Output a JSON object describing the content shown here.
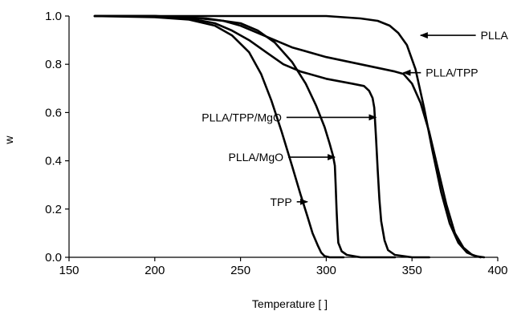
{
  "chart_data": {
    "type": "line",
    "title": "",
    "xlabel": "Temperature [   ]",
    "ylabel": "w",
    "xlim": [
      150,
      400
    ],
    "ylim": [
      0.0,
      1.0
    ],
    "xticks": [
      "150",
      "200",
      "250",
      "300",
      "350",
      "400"
    ],
    "yticks": [
      "0.0",
      "0.2",
      "0.4",
      "0.6",
      "0.8",
      "1.0"
    ],
    "grid": false,
    "legend": "none",
    "series": [
      {
        "name": "PLLA",
        "x": [
          165,
          280,
          300,
          320,
          330,
          337,
          342,
          347,
          352,
          357,
          362,
          367,
          372,
          377,
          382,
          387,
          392
        ],
        "y": [
          1.0,
          1.0,
          1.0,
          0.99,
          0.98,
          0.96,
          0.93,
          0.88,
          0.78,
          0.62,
          0.44,
          0.27,
          0.14,
          0.06,
          0.02,
          0.005,
          0.0
        ]
      },
      {
        "name": "PLLA/TPP",
        "x": [
          165,
          200,
          220,
          240,
          250,
          260,
          270,
          280,
          300,
          320,
          340,
          345,
          350,
          355,
          360,
          365,
          370,
          375,
          380,
          385,
          390
        ],
        "y": [
          1.0,
          1.0,
          0.995,
          0.98,
          0.96,
          0.93,
          0.9,
          0.87,
          0.83,
          0.8,
          0.77,
          0.76,
          0.72,
          0.64,
          0.52,
          0.37,
          0.22,
          0.1,
          0.04,
          0.01,
          0.0
        ]
      },
      {
        "name": "PLLA/TPP/MgO",
        "x": [
          165,
          200,
          220,
          235,
          245,
          255,
          265,
          275,
          285,
          300,
          315,
          322,
          325,
          327,
          328,
          329,
          330,
          331,
          332,
          334,
          336,
          340,
          350,
          360
        ],
        "y": [
          1.0,
          1.0,
          0.99,
          0.97,
          0.94,
          0.9,
          0.85,
          0.8,
          0.77,
          0.74,
          0.72,
          0.71,
          0.69,
          0.66,
          0.62,
          0.5,
          0.36,
          0.24,
          0.15,
          0.07,
          0.03,
          0.01,
          0.0,
          0.0
        ]
      },
      {
        "name": "PLLA/MgO",
        "x": [
          165,
          200,
          230,
          250,
          260,
          270,
          280,
          288,
          294,
          299,
          302,
          304,
          305,
          305.5,
          306,
          306.5,
          307,
          309,
          312,
          320,
          340
        ],
        "y": [
          1.0,
          1.0,
          0.99,
          0.97,
          0.94,
          0.89,
          0.81,
          0.72,
          0.63,
          0.54,
          0.47,
          0.42,
          0.38,
          0.3,
          0.2,
          0.12,
          0.06,
          0.025,
          0.01,
          0.0,
          0.0
        ]
      },
      {
        "name": "TPP",
        "x": [
          165,
          200,
          220,
          235,
          245,
          255,
          262,
          268,
          274,
          280,
          285,
          289,
          292,
          295,
          297,
          299,
          302,
          310
        ],
        "y": [
          1.0,
          0.995,
          0.985,
          0.96,
          0.92,
          0.85,
          0.76,
          0.65,
          0.52,
          0.38,
          0.26,
          0.17,
          0.1,
          0.05,
          0.02,
          0.005,
          0.0,
          0.0
        ]
      }
    ],
    "annotations": [
      {
        "text": "PLLA",
        "x_text": 390,
        "y_text": 0.92,
        "x_arrow": 355,
        "y_arrow": 0.92,
        "anchor": "start"
      },
      {
        "text": "PLLA/TPP",
        "x_text": 358,
        "y_text": 0.765,
        "x_arrow": 345,
        "y_arrow": 0.765,
        "anchor": "start"
      },
      {
        "text": "PLLA/TPP/MgO",
        "x_text": 274,
        "y_text": 0.58,
        "x_arrow": 329,
        "y_arrow": 0.58,
        "anchor": "end"
      },
      {
        "text": "PLLA/MgO",
        "x_text": 275,
        "y_text": 0.415,
        "x_arrow": 305,
        "y_arrow": 0.415,
        "anchor": "end"
      },
      {
        "text": "TPP",
        "x_text": 280,
        "y_text": 0.23,
        "x_arrow": 289,
        "y_arrow": 0.23,
        "anchor": "end"
      }
    ]
  }
}
